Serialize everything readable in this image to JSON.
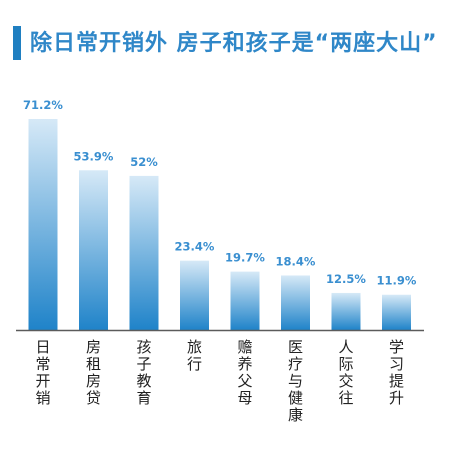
{
  "title": "除日常开销外 房子和孩子是“两座大山”",
  "colors": {
    "accent": "#1f7fc1",
    "title": "#2f87c8",
    "label": "#3a8fd0",
    "bar_top": "#d6e9f7",
    "bar_bottom": "#1f83c9",
    "axis": "#5b5b5b"
  },
  "chart_data": {
    "type": "bar",
    "categories": [
      "日常开销",
      "房租房贷",
      "孩子教育",
      "旅行",
      "赡养父母",
      "医疗与健康",
      "人际交往",
      "学习提升"
    ],
    "values": [
      71.2,
      53.9,
      52,
      23.4,
      19.7,
      18.4,
      12.5,
      11.9
    ],
    "value_labels": [
      "71.2%",
      "53.9%",
      "52%",
      "23.4%",
      "19.7%",
      "18.4%",
      "12.5%",
      "11.9%"
    ],
    "unit": "%",
    "ylim": [
      0,
      80
    ],
    "grid": false,
    "legend": "none"
  }
}
